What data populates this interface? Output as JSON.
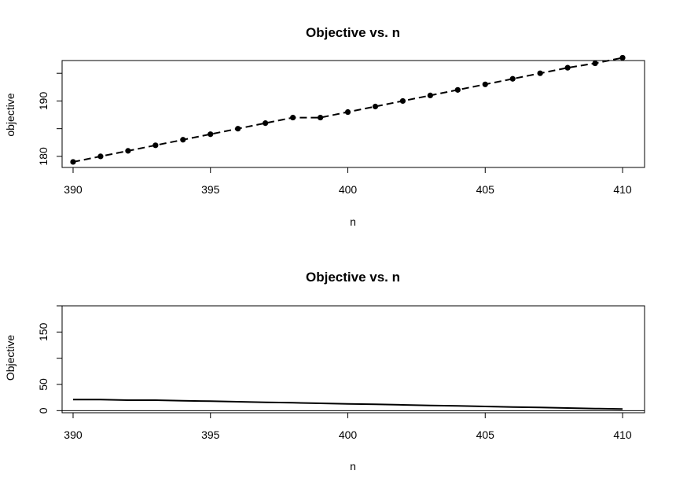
{
  "chart_data": [
    {
      "type": "line",
      "title": "Objective vs. n",
      "xlabel": "n",
      "ylabel": "objective",
      "xlim": [
        389.6,
        410.8
      ],
      "ylim": [
        178.0,
        197.3
      ],
      "xticks": [
        390,
        395,
        400,
        405,
        410
      ],
      "yticks": [
        180,
        190
      ],
      "yminor_ticks": [
        185,
        195
      ],
      "line_style": "dashed",
      "markers": true,
      "x": [
        390,
        391,
        392,
        393,
        394,
        395,
        396,
        397,
        398,
        399,
        400,
        401,
        402,
        403,
        404,
        405,
        406,
        407,
        408,
        409,
        410
      ],
      "y": [
        179,
        180,
        181,
        182,
        183,
        184,
        185,
        186,
        187,
        187,
        188,
        189,
        190,
        191,
        192,
        193,
        194,
        195,
        196,
        196.8,
        197.8
      ]
    },
    {
      "type": "line",
      "title": "Objective vs. n",
      "xlabel": "n",
      "ylabel": "Objective",
      "xlim": [
        389.6,
        410.8
      ],
      "ylim": [
        -4,
        200
      ],
      "xticks": [
        390,
        395,
        400,
        405,
        410
      ],
      "yticks": [
        0,
        50,
        150
      ],
      "yminor_ticks": [
        100,
        200
      ],
      "hline": 0,
      "line_style": "solid",
      "markers": false,
      "x": [
        390,
        391,
        392,
        393,
        394,
        395,
        396,
        397,
        398,
        399,
        400,
        401,
        402,
        403,
        404,
        405,
        406,
        407,
        408,
        409,
        410
      ],
      "y": [
        21,
        21,
        20,
        20,
        19,
        18,
        17,
        16,
        15,
        14,
        13,
        12,
        11,
        10,
        9,
        8,
        7,
        6,
        5,
        4,
        3
      ]
    }
  ]
}
